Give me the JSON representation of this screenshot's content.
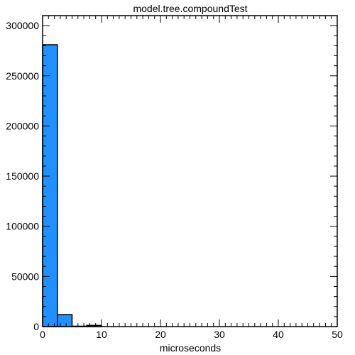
{
  "chart_data": {
    "type": "bar",
    "title": "model.tree.compoundTest",
    "xlabel": "microseconds",
    "ylabel": "",
    "xlim": [
      0,
      50
    ],
    "ylim": [
      0,
      310000
    ],
    "x_major_ticks": [
      0,
      10,
      20,
      30,
      40,
      50
    ],
    "x_minor_step": 1,
    "y_major_ticks": [
      0,
      50000,
      100000,
      150000,
      200000,
      250000,
      300000
    ],
    "y_minor_step": 10000,
    "bin_edges": [
      0,
      2.5,
      5,
      7.5,
      10
    ],
    "values": [
      281000,
      12000,
      400,
      1200
    ],
    "bar_color": "#1e90ff",
    "grid": false
  }
}
